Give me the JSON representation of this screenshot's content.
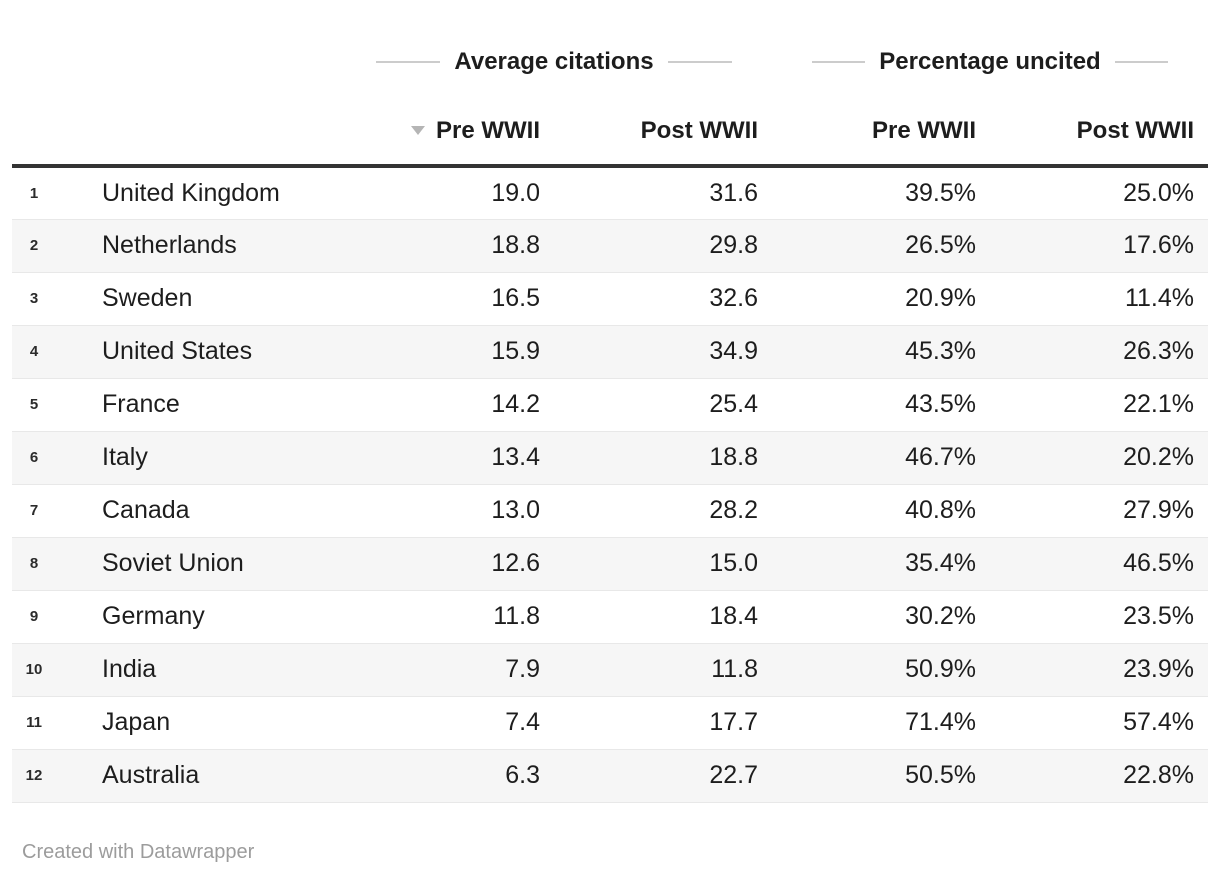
{
  "chart_data": {
    "type": "table",
    "column_groups": [
      "Average citations",
      "Percentage uncited"
    ],
    "col_headers": [
      "Pre WWII",
      "Post WWII",
      "Pre WWII",
      "Post WWII"
    ],
    "sorted_column": "Pre WWII (Average citations)",
    "sort_direction": "descending",
    "rows": [
      {
        "rank": "1",
        "country": "United Kingdom",
        "avg_pre": "19.0",
        "avg_post": "31.6",
        "pct_pre": "39.5%",
        "pct_post": "25.0%"
      },
      {
        "rank": "2",
        "country": "Netherlands",
        "avg_pre": "18.8",
        "avg_post": "29.8",
        "pct_pre": "26.5%",
        "pct_post": "17.6%"
      },
      {
        "rank": "3",
        "country": "Sweden",
        "avg_pre": "16.5",
        "avg_post": "32.6",
        "pct_pre": "20.9%",
        "pct_post": "11.4%"
      },
      {
        "rank": "4",
        "country": "United States",
        "avg_pre": "15.9",
        "avg_post": "34.9",
        "pct_pre": "45.3%",
        "pct_post": "26.3%"
      },
      {
        "rank": "5",
        "country": "France",
        "avg_pre": "14.2",
        "avg_post": "25.4",
        "pct_pre": "43.5%",
        "pct_post": "22.1%"
      },
      {
        "rank": "6",
        "country": "Italy",
        "avg_pre": "13.4",
        "avg_post": "18.8",
        "pct_pre": "46.7%",
        "pct_post": "20.2%"
      },
      {
        "rank": "7",
        "country": "Canada",
        "avg_pre": "13.0",
        "avg_post": "28.2",
        "pct_pre": "40.8%",
        "pct_post": "27.9%"
      },
      {
        "rank": "8",
        "country": "Soviet Union",
        "avg_pre": "12.6",
        "avg_post": "15.0",
        "pct_pre": "35.4%",
        "pct_post": "46.5%"
      },
      {
        "rank": "9",
        "country": "Germany",
        "avg_pre": "11.8",
        "avg_post": "18.4",
        "pct_pre": "30.2%",
        "pct_post": "23.5%"
      },
      {
        "rank": "10",
        "country": "India",
        "avg_pre": "7.9",
        "avg_post": "11.8",
        "pct_pre": "50.9%",
        "pct_post": "23.9%"
      },
      {
        "rank": "11",
        "country": "Japan",
        "avg_pre": "7.4",
        "avg_post": "17.7",
        "pct_pre": "71.4%",
        "pct_post": "57.4%"
      },
      {
        "rank": "12",
        "country": "Australia",
        "avg_pre": "6.3",
        "avg_post": "22.7",
        "pct_pre": "50.5%",
        "pct_post": "22.8%"
      }
    ]
  },
  "icons": {
    "sort_descending": "▼"
  },
  "footer": {
    "credit": "Created with Datawrapper"
  },
  "colors": {
    "text": "#1d1d1d",
    "header_rule": "#333333",
    "row_stripe": "#f6f6f6",
    "row_border": "#e8e8e8",
    "group_dash": "#cccccc",
    "sort_arrow": "#b5b5b5",
    "footer_text": "#9c9c9c"
  }
}
